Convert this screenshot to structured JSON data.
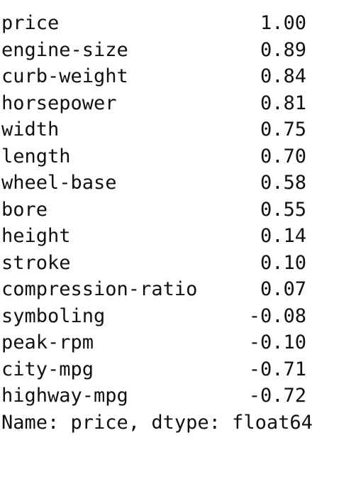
{
  "series": {
    "rows": [
      {
        "label": "price",
        "value": "1.00"
      },
      {
        "label": "engine-size",
        "value": "0.89"
      },
      {
        "label": "curb-weight",
        "value": "0.84"
      },
      {
        "label": "horsepower",
        "value": "0.81"
      },
      {
        "label": "width",
        "value": "0.75"
      },
      {
        "label": "length",
        "value": "0.70"
      },
      {
        "label": "wheel-base",
        "value": "0.58"
      },
      {
        "label": "bore",
        "value": "0.55"
      },
      {
        "label": "height",
        "value": "0.14"
      },
      {
        "label": "stroke",
        "value": "0.10"
      },
      {
        "label": "compression-ratio",
        "value": "0.07"
      },
      {
        "label": "symboling",
        "value": "-0.08"
      },
      {
        "label": "peak-rpm",
        "value": "-0.10"
      },
      {
        "label": "city-mpg",
        "value": "-0.71"
      },
      {
        "label": "highway-mpg",
        "value": "-0.72"
      }
    ],
    "footer": "Name: price, dtype: float64"
  }
}
